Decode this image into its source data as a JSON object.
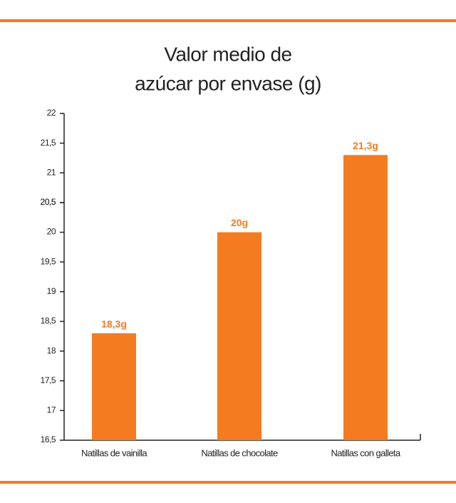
{
  "chart_data": {
    "type": "bar",
    "title": "Valor medio de",
    "subtitle": "azúcar por envase (g)",
    "categories": [
      "Natillas de vainilla",
      "Natillas de chocolate",
      "Natillas con galleta"
    ],
    "values": [
      18.3,
      20,
      21.3
    ],
    "value_labels": [
      "18,3g",
      "20g",
      "21,3g"
    ],
    "color": "#f47b20",
    "ylim": [
      16.5,
      22
    ],
    "yticks": [
      22,
      {
        "value": 21.5,
        "label": "21,5"
      },
      21,
      {
        "value": 20.5,
        "label": "20,5"
      },
      {
        "value": 20.5,
        "label": "20,5"
      },
      20,
      {
        "value": 19.5,
        "label": "19,5"
      },
      19,
      {
        "value": 18.5,
        "label": "18,5"
      },
      18,
      {
        "value": 17.5,
        "label": "17,5"
      },
      17,
      {
        "value": 16.5,
        "label": "16,5"
      }
    ]
  }
}
